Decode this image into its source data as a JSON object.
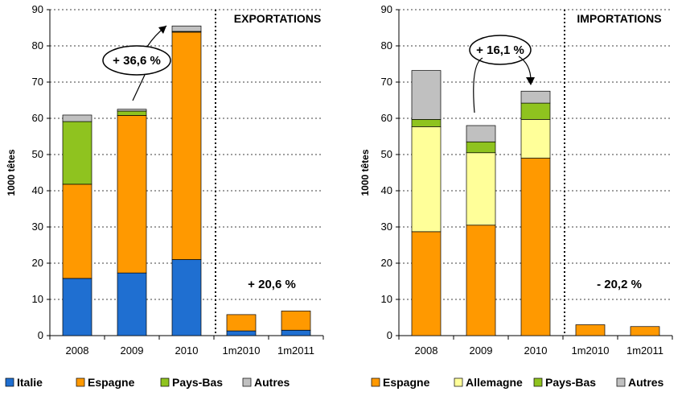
{
  "chart_data": [
    {
      "type": "bar",
      "stacked": true,
      "title": "EXPORTATIONS",
      "ylabel": "1000 têtes",
      "ylim": [
        0,
        90
      ],
      "yticks": [
        "0",
        "10",
        "20",
        "30",
        "40",
        "50",
        "60",
        "70",
        "80",
        "90"
      ],
      "categories": [
        "2008",
        "2009",
        "2010",
        "1m2010",
        "1m2011"
      ],
      "grid": true,
      "legend_position": "bottom",
      "series": [
        {
          "name": "Italie",
          "color": "#1f6fd1",
          "values": [
            15.8,
            17.3,
            21.0,
            1.3,
            1.5
          ]
        },
        {
          "name": "Espagne",
          "color": "#ff9900",
          "values": [
            26.0,
            43.5,
            62.8,
            4.5,
            5.3
          ]
        },
        {
          "name": "Pays-Bas",
          "color": "#8fc31f",
          "values": [
            17.3,
            1.2,
            0.2,
            0,
            0
          ]
        },
        {
          "name": "Autres",
          "color": "#c0c0c0",
          "values": [
            1.8,
            0.5,
            1.5,
            0,
            0
          ]
        }
      ],
      "annotations": [
        {
          "text": "+ 36,6 %"
        },
        {
          "text": "+ 20,6 %"
        }
      ]
    },
    {
      "type": "bar",
      "stacked": true,
      "title": "IMPORTATIONS",
      "ylabel": "1000 têtes",
      "ylim": [
        0,
        90
      ],
      "yticks": [
        "0",
        "10",
        "20",
        "30",
        "40",
        "50",
        "60",
        "70",
        "80",
        "90"
      ],
      "categories": [
        "2008",
        "2009",
        "2010",
        "1m2010",
        "1m2011"
      ],
      "grid": true,
      "legend_position": "bottom",
      "series": [
        {
          "name": "Espagne",
          "color": "#ff9900",
          "values": [
            28.7,
            30.5,
            49.0,
            3.0,
            2.5
          ]
        },
        {
          "name": "Allemagne",
          "color": "#ffff99",
          "values": [
            29.0,
            20.0,
            10.7,
            0,
            0
          ]
        },
        {
          "name": "Pays-Bas",
          "color": "#8fc31f",
          "values": [
            2.0,
            3.0,
            4.5,
            0,
            0
          ]
        },
        {
          "name": "Autres",
          "color": "#c0c0c0",
          "values": [
            13.5,
            4.5,
            3.3,
            0,
            0
          ]
        }
      ],
      "annotations": [
        {
          "text": "+ 16,1 %"
        },
        {
          "text": "- 20,2 %"
        }
      ]
    }
  ]
}
